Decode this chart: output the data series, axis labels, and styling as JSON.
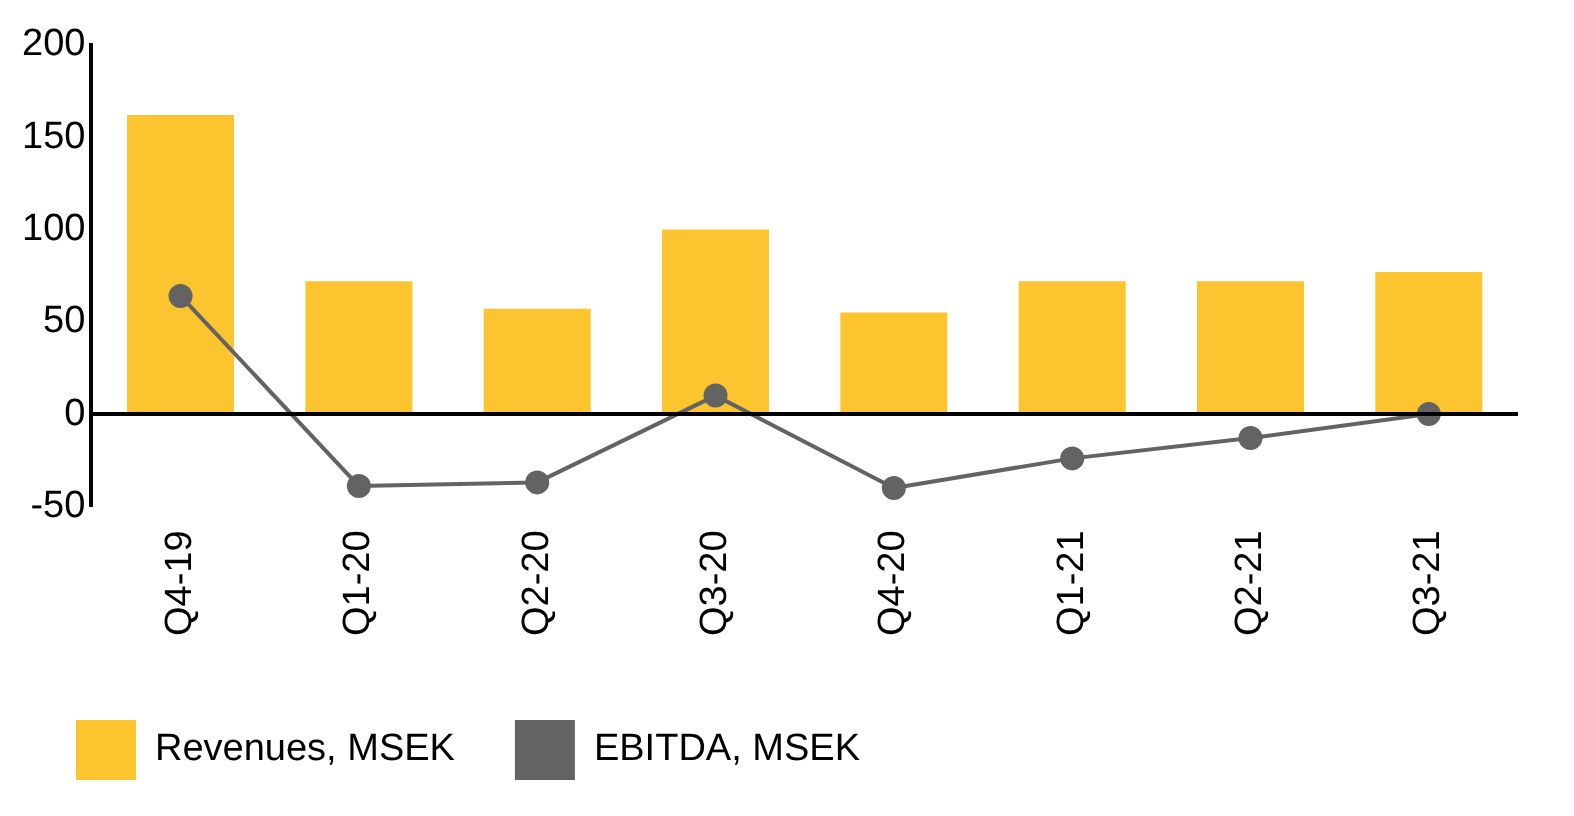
{
  "chart_data": {
    "type": "bar",
    "categories": [
      "Q4-19",
      "Q1-20",
      "Q2-20",
      "Q3-20",
      "Q4-20",
      "Q1-21",
      "Q2-21",
      "Q3-21"
    ],
    "series": [
      {
        "name": "Revenues, MSEK",
        "color": "#fcc42e",
        "values": [
          162,
          72,
          57,
          100,
          55,
          72,
          72,
          77
        ]
      },
      {
        "name": "EBITDA, MSEK",
        "type": "line",
        "color": "#636363",
        "values": [
          64,
          -39,
          -37,
          10,
          -40,
          -24,
          -13,
          0
        ]
      }
    ],
    "ylim": [
      -50,
      200
    ],
    "yticks": [
      -50,
      0,
      50,
      100,
      150,
      200
    ],
    "legend": "bottom left",
    "marker": "circle",
    "line_style": "solid"
  }
}
